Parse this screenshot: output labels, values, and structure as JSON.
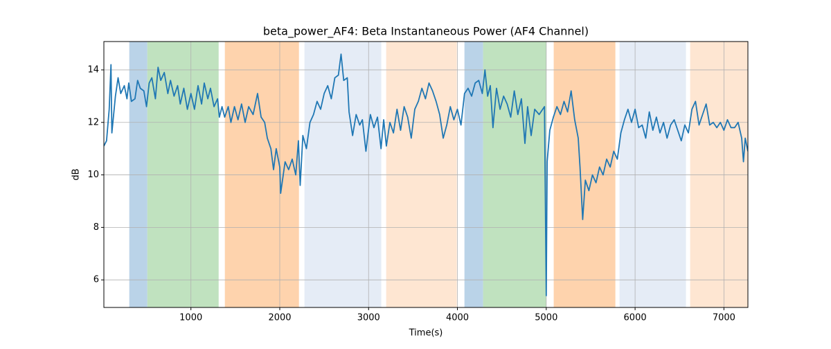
{
  "chart_data": {
    "type": "line",
    "title": "beta_power_AF4: Beta Instantaneous Power (AF4 Channel)",
    "x_label": "Time(s)",
    "y_label": "dB",
    "xlim": [
      20,
      7270
    ],
    "ylim": [
      4.95,
      15.08
    ],
    "xticks": [
      1000,
      2000,
      3000,
      4000,
      5000,
      6000,
      7000
    ],
    "yticks": [
      6,
      8,
      10,
      12,
      14
    ],
    "grid": true,
    "spans": [
      {
        "x0": 306,
        "x1": 509,
        "color": "#bad3e8"
      },
      {
        "x0": 509,
        "x1": 1312,
        "color": "#c0e2bf"
      },
      {
        "x0": 1382,
        "x1": 2216,
        "color": "#fed3ad"
      },
      {
        "x0": 2278,
        "x1": 3143,
        "color": "#e5ecf6"
      },
      {
        "x0": 3198,
        "x1": 3993,
        "color": "#fee6d2"
      },
      {
        "x0": 4079,
        "x1": 4289,
        "color": "#bad3e8"
      },
      {
        "x0": 4289,
        "x1": 4998,
        "color": "#c0e2bf"
      },
      {
        "x0": 5084,
        "x1": 5778,
        "color": "#fed3ad"
      },
      {
        "x0": 5825,
        "x1": 6573,
        "color": "#e5ecf6"
      },
      {
        "x0": 6620,
        "x1": 7267,
        "color": "#fee6d2"
      }
    ],
    "x": [
      20,
      50,
      80,
      100,
      110,
      150,
      180,
      210,
      250,
      280,
      300,
      330,
      370,
      400,
      430,
      470,
      500,
      530,
      560,
      600,
      630,
      660,
      700,
      740,
      770,
      810,
      850,
      880,
      920,
      960,
      1000,
      1040,
      1080,
      1120,
      1150,
      1190,
      1220,
      1260,
      1300,
      1320,
      1350,
      1380,
      1420,
      1450,
      1490,
      1530,
      1570,
      1610,
      1650,
      1700,
      1750,
      1790,
      1830,
      1860,
      1900,
      1930,
      1960,
      2000,
      2010,
      2060,
      2100,
      2140,
      2180,
      2210,
      2230,
      2260,
      2300,
      2340,
      2380,
      2420,
      2460,
      2500,
      2540,
      2580,
      2620,
      2660,
      2690,
      2720,
      2760,
      2780,
      2820,
      2860,
      2900,
      2930,
      2970,
      3020,
      3060,
      3100,
      3140,
      3170,
      3200,
      3240,
      3280,
      3320,
      3360,
      3400,
      3440,
      3480,
      3520,
      3560,
      3600,
      3640,
      3680,
      3720,
      3760,
      3800,
      3840,
      3880,
      3920,
      3960,
      4000,
      4040,
      4080,
      4120,
      4160,
      4200,
      4240,
      4280,
      4310,
      4340,
      4370,
      4400,
      4440,
      4480,
      4520,
      4560,
      4600,
      4640,
      4680,
      4720,
      4760,
      4790,
      4830,
      4870,
      4920,
      4980,
      5000,
      5010,
      5040,
      5080,
      5120,
      5160,
      5200,
      5240,
      5280,
      5320,
      5360,
      5380,
      5410,
      5440,
      5480,
      5520,
      5560,
      5600,
      5640,
      5680,
      5720,
      5760,
      5800,
      5840,
      5880,
      5920,
      5960,
      6000,
      6040,
      6080,
      6120,
      6160,
      6200,
      6240,
      6280,
      6320,
      6360,
      6400,
      6440,
      6480,
      6520,
      6560,
      6600,
      6640,
      6680,
      6720,
      6760,
      6800,
      6840,
      6880,
      6920,
      6960,
      7000,
      7040,
      7080,
      7120,
      7160,
      7200,
      7220,
      7240,
      7270
    ],
    "series": [
      {
        "color": "#1f77b4",
        "values": [
          11.1,
          11.3,
          12.5,
          14.2,
          11.6,
          13.0,
          13.7,
          13.1,
          13.4,
          12.9,
          13.5,
          12.8,
          12.9,
          13.6,
          13.3,
          13.2,
          12.6,
          13.5,
          13.7,
          12.9,
          14.1,
          13.6,
          13.9,
          13.1,
          13.6,
          13.0,
          13.4,
          12.7,
          13.3,
          12.5,
          13.1,
          12.5,
          13.4,
          12.7,
          13.5,
          12.9,
          13.3,
          12.6,
          12.9,
          12.2,
          12.6,
          12.2,
          12.6,
          12.0,
          12.6,
          12.1,
          12.7,
          12.0,
          12.6,
          12.3,
          13.1,
          12.2,
          12.0,
          11.4,
          11.0,
          10.2,
          11.0,
          10.3,
          9.3,
          10.5,
          10.2,
          10.6,
          10.0,
          11.3,
          9.6,
          11.5,
          11.0,
          12.0,
          12.3,
          12.8,
          12.5,
          13.1,
          13.4,
          12.9,
          13.7,
          13.8,
          14.6,
          13.6,
          13.7,
          12.4,
          11.5,
          12.3,
          11.9,
          12.1,
          10.9,
          12.3,
          11.8,
          12.2,
          11.0,
          12.1,
          11.1,
          12.0,
          11.6,
          12.5,
          11.7,
          12.6,
          12.2,
          11.4,
          12.5,
          12.8,
          13.3,
          12.9,
          13.5,
          13.2,
          12.8,
          12.3,
          11.4,
          11.9,
          12.6,
          12.1,
          12.5,
          11.9,
          13.1,
          13.3,
          13.0,
          13.5,
          13.6,
          13.1,
          14.0,
          13.0,
          13.4,
          11.8,
          13.3,
          12.5,
          13.0,
          12.7,
          12.2,
          13.2,
          12.3,
          12.9,
          11.2,
          12.6,
          11.5,
          12.5,
          12.3,
          12.6,
          5.4,
          10.5,
          11.7,
          12.2,
          12.6,
          12.3,
          12.8,
          12.4,
          13.2,
          12.1,
          11.4,
          10.3,
          8.3,
          9.8,
          9.4,
          10.0,
          9.7,
          10.3,
          10.0,
          10.6,
          10.3,
          10.9,
          10.6,
          11.6,
          12.1,
          12.5,
          12.0,
          12.5,
          11.8,
          11.9,
          11.4,
          12.4,
          11.7,
          12.2,
          11.6,
          12.0,
          11.4,
          11.9,
          12.1,
          11.7,
          11.3,
          11.9,
          11.6,
          12.5,
          12.8,
          11.9,
          12.3,
          12.7,
          11.9,
          12.0,
          11.8,
          12.0,
          11.7,
          12.1,
          11.8,
          11.8,
          12.0,
          11.4,
          10.5,
          11.4,
          10.9
        ]
      }
    ]
  }
}
